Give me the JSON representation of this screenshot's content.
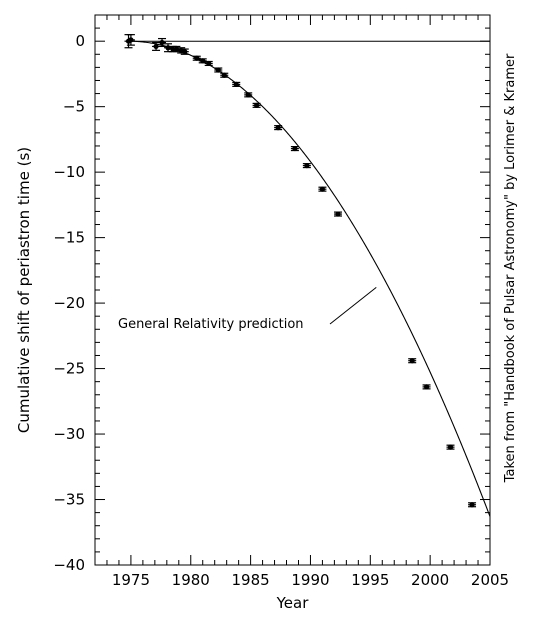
{
  "chart_data": {
    "type": "scatter",
    "xlabel": "Year",
    "ylabel": "Cumulative shift of periastron time (s)",
    "xlim": [
      1972,
      2005
    ],
    "ylim": [
      -40,
      2
    ],
    "xticks": [
      1975,
      1980,
      1985,
      1990,
      1995,
      2000,
      2005
    ],
    "yticks": [
      0,
      -5,
      -10,
      -15,
      -20,
      -25,
      -30,
      -35,
      -40
    ],
    "grid": false,
    "series": [
      {
        "kind": "points",
        "x": [
          1974.8,
          1975.0,
          1977.1,
          1977.6,
          1978.1,
          1978.5,
          1978.8,
          1979.2,
          1979.5,
          1980.5,
          1981.0,
          1981.5,
          1982.3,
          1982.8,
          1983.8,
          1984.8,
          1985.5,
          1987.3,
          1988.7,
          1989.7,
          1991.0,
          1992.3,
          1998.5,
          1999.7,
          2001.7,
          2003.5
        ],
        "y": [
          0.0,
          0.1,
          -0.4,
          -0.1,
          -0.5,
          -0.6,
          -0.6,
          -0.7,
          -0.8,
          -1.3,
          -1.5,
          -1.7,
          -2.2,
          -2.6,
          -3.3,
          -4.1,
          -4.9,
          -6.6,
          -8.2,
          -9.5,
          -11.3,
          -13.2,
          -24.4,
          -26.4,
          -31.0,
          -35.4
        ],
        "yerr": [
          0.5,
          0.4,
          0.3,
          0.3,
          0.3,
          0.2,
          0.2,
          0.2,
          0.2,
          0.15,
          0.15,
          0.15,
          0.15,
          0.15,
          0.15,
          0.15,
          0.15,
          0.15,
          0.15,
          0.15,
          0.15,
          0.15,
          0.15,
          0.15,
          0.15,
          0.15
        ]
      },
      {
        "kind": "curve",
        "name": "General Relativity prediction",
        "equation": "y = -0.0398 * (x - 1974.8)^2"
      },
      {
        "kind": "reference-line",
        "y": 0
      }
    ],
    "annotations": [
      {
        "text": "General Relativity prediction",
        "points_to": {
          "x": 1995.5,
          "y": -18.8
        }
      }
    ]
  },
  "credit": "Taken from \"Handbook of Pulsar Astronomy\" by Lorimer & Kramer"
}
